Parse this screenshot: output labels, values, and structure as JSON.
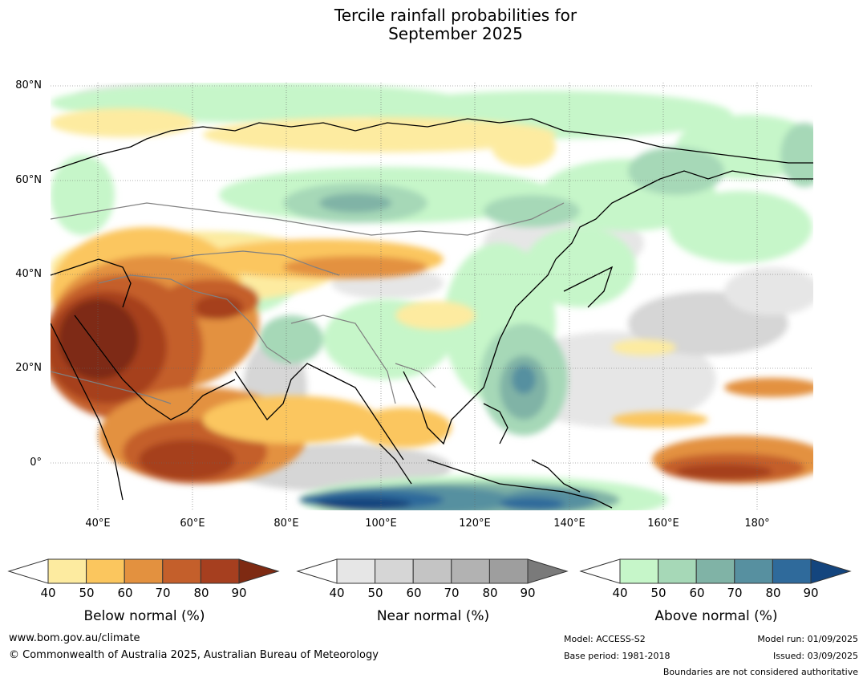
{
  "title": {
    "line1": "Tercile rainfall probabilities for",
    "line2": "September 2025"
  },
  "map": {
    "lat_labels": [
      "80°N",
      "60°N",
      "40°N",
      "20°N",
      "0°"
    ],
    "lon_labels": [
      "40°E",
      "60°E",
      "80°E",
      "100°E",
      "120°E",
      "140°E",
      "160°E",
      "180°"
    ],
    "colors": {
      "below_normal": [
        "#fdeba0",
        "#fbc65e",
        "#e3913f",
        "#c45f2b",
        "#a63f1f",
        "#7e2a12"
      ],
      "near_normal": [
        "#e6e6e6",
        "#d6d6d6",
        "#c4c4c4",
        "#b2b2b2",
        "#9e9e9e",
        "#7a7a7a"
      ],
      "above_normal": [
        "#c6f6c9",
        "#a6d8b7",
        "#80b3a6",
        "#5790a0",
        "#2f6a9b",
        "#14457e"
      ]
    }
  },
  "colorbars": [
    {
      "id": "below",
      "label": "Below normal (%)",
      "ticks": [
        "40",
        "50",
        "60",
        "70",
        "80",
        "90"
      ],
      "colors": [
        "#fdeba0",
        "#fbc65e",
        "#e3913f",
        "#c45f2b",
        "#a63f1f",
        "#7e2a12"
      ]
    },
    {
      "id": "near",
      "label": "Near normal (%)",
      "ticks": [
        "40",
        "50",
        "60",
        "70",
        "80",
        "90"
      ],
      "colors": [
        "#e6e6e6",
        "#d6d6d6",
        "#c4c4c4",
        "#b2b2b2",
        "#9e9e9e",
        "#7a7a7a"
      ]
    },
    {
      "id": "above",
      "label": "Above normal (%)",
      "ticks": [
        "40",
        "50",
        "60",
        "70",
        "80",
        "90"
      ],
      "colors": [
        "#c6f6c9",
        "#a6d8b7",
        "#80b3a6",
        "#5790a0",
        "#2f6a9b",
        "#14457e"
      ]
    }
  ],
  "footer": {
    "url": "www.bom.gov.au/climate",
    "copyright": "© Commonwealth of Australia 2025, Australian Bureau of Meteorology",
    "model": "Model: ACCESS-S2",
    "base_period": "Base period: 1981-2018",
    "model_run": "Model run: 01/09/2025",
    "issued": "Issued: 03/09/2025",
    "boundaries": "Boundaries are not considered authoritative"
  }
}
